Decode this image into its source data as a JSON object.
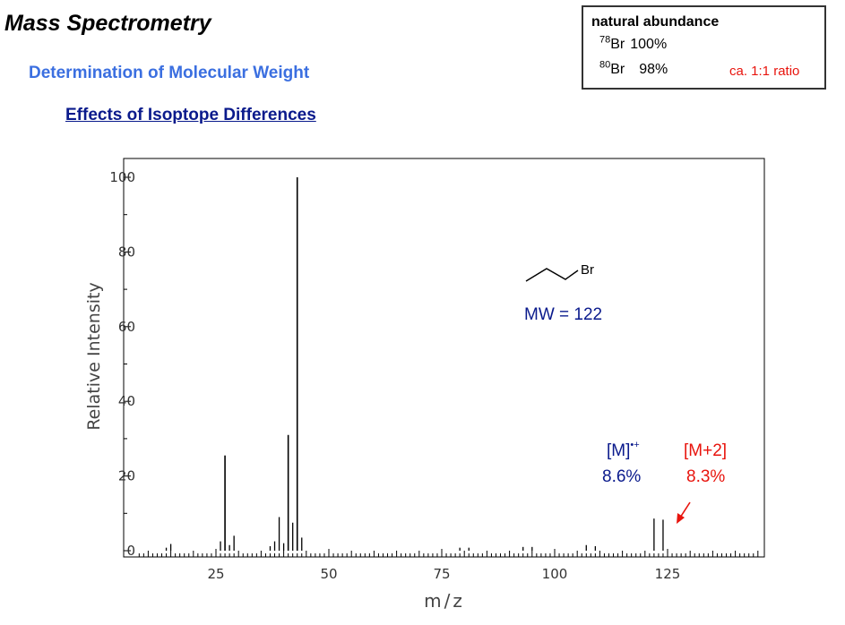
{
  "slide": {
    "title": "Mass Spectrometry",
    "subtitle": "Determination of Molecular Weight",
    "heading": "Effects of Isoptope Differences"
  },
  "abundance_box": {
    "title": "natural abundance",
    "isotopes": [
      {
        "mass": "78",
        "element": "Br",
        "abundance": "100%"
      },
      {
        "mass": "80",
        "element": "Br",
        "abundance": "98%"
      }
    ],
    "note": "ca. 1:1 ratio"
  },
  "annotations": {
    "molecule_label": "Br",
    "mw_label": "MW = 122",
    "m_label": "[M]",
    "m_superscript": "•+",
    "m_value": "8.6%",
    "m2_label": "[M+2]",
    "m2_value": "8.3%"
  },
  "colors": {
    "subtitle": "#3b6fe0",
    "heading": "#0a1a8c",
    "navy_text": "#0a1a8c",
    "red_text": "#e8140d",
    "bars": "#000000"
  },
  "chart_data": {
    "type": "bar",
    "xlabel": "m/z",
    "ylabel": "Relative Intensity",
    "xlim": [
      8,
      145
    ],
    "ylim": [
      0,
      105
    ],
    "xticks": [
      25,
      50,
      75,
      100,
      125
    ],
    "yticks": [
      0,
      20,
      40,
      60,
      80,
      100
    ],
    "grid": false,
    "peaks": [
      {
        "x": 14,
        "y": 0.8
      },
      {
        "x": 15,
        "y": 1.8
      },
      {
        "x": 26,
        "y": 2.5
      },
      {
        "x": 27,
        "y": 25.5
      },
      {
        "x": 28,
        "y": 1.5
      },
      {
        "x": 29,
        "y": 4.0
      },
      {
        "x": 37,
        "y": 1.2
      },
      {
        "x": 38,
        "y": 2.5
      },
      {
        "x": 39,
        "y": 9.0
      },
      {
        "x": 40,
        "y": 2.0
      },
      {
        "x": 41,
        "y": 31.0
      },
      {
        "x": 42,
        "y": 7.5
      },
      {
        "x": 43,
        "y": 100.0
      },
      {
        "x": 44,
        "y": 3.5
      },
      {
        "x": 79,
        "y": 0.8
      },
      {
        "x": 81,
        "y": 0.8
      },
      {
        "x": 93,
        "y": 1.0
      },
      {
        "x": 95,
        "y": 1.0
      },
      {
        "x": 107,
        "y": 1.5
      },
      {
        "x": 109,
        "y": 1.2
      },
      {
        "x": 122,
        "y": 8.6
      },
      {
        "x": 124,
        "y": 8.3
      }
    ]
  }
}
